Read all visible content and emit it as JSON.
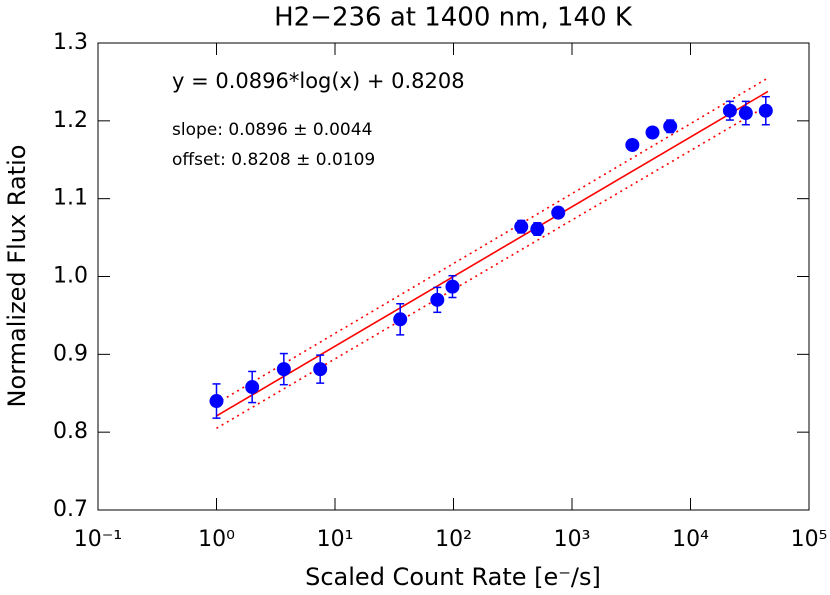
{
  "chart_data": {
    "type": "scatter",
    "title": "H2−236 at 1400 nm, 140 K",
    "x_label": "Scaled Count Rate [e⁻/s]",
    "y_label": "Normalized Flux Ratio",
    "annotations": [
      "y = 0.0896*log(x) + 0.8208",
      "slope: 0.0896 ± 0.0044",
      "offset: 0.8208 ± 0.0109"
    ],
    "x_scale": "log",
    "xlim": [
      0.1,
      100000
    ],
    "xticks": [
      {
        "value": 0.1,
        "label": "10⁻¹"
      },
      {
        "value": 1,
        "label": "10⁰"
      },
      {
        "value": 10,
        "label": "10¹"
      },
      {
        "value": 100,
        "label": "10²"
      },
      {
        "value": 1000,
        "label": "10³"
      },
      {
        "value": 10000,
        "label": "10⁴"
      },
      {
        "value": 100000,
        "label": "10⁵"
      }
    ],
    "ylim": [
      0.7,
      1.3
    ],
    "yticks": [
      0.7,
      0.8,
      0.9,
      {
        "value": 1.0,
        "label": "1.0"
      },
      1.1,
      1.2,
      1.3
    ],
    "series": [
      {
        "style": "markers",
        "color": "#0000ff",
        "x": [
          1,
          2,
          3.7,
          7.5,
          35.5,
          73,
          98,
          373,
          510,
          765,
          3230,
          4780,
          6740,
          21500,
          29300,
          43200
        ],
        "values": [
          0.84,
          0.858,
          0.881,
          0.881,
          0.945,
          0.97,
          0.987,
          1.064,
          1.061,
          1.082,
          1.169,
          1.185,
          1.193,
          1.213,
          1.21,
          1.213
        ],
        "errors": [
          0.022,
          0.02,
          0.02,
          0.018,
          0.02,
          0.016,
          0.014,
          0.008,
          0.008,
          0.006,
          0.005,
          0.006,
          0.008,
          0.012,
          0.015,
          0.018
        ]
      },
      {
        "style": "solid",
        "color": "#ff0000",
        "x": [
          1,
          45000
        ],
        "values": [
          0.8208,
          1.2377
        ]
      },
      {
        "style": "dotted",
        "color": "#ff0000",
        "x": [
          1,
          45000
        ],
        "values": [
          0.837,
          1.255
        ]
      },
      {
        "style": "dotted",
        "color": "#ff0000",
        "x": [
          1,
          45000
        ],
        "values": [
          0.805,
          1.22
        ]
      }
    ]
  }
}
